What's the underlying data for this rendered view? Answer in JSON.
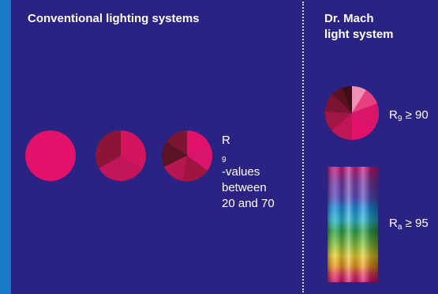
{
  "left_heading": "Conventional lighting systems",
  "right_heading": [
    "Dr. Mach",
    "light system"
  ],
  "left_label": {
    "symbol": "R",
    "sub": "9",
    "lines": [
      "-values",
      "between",
      "20 and 70"
    ]
  },
  "r9_label": {
    "symbol": "R",
    "sub": "9",
    "rest": " ≥ 90"
  },
  "ra_label": {
    "symbol": "R",
    "sub": "a",
    "rest": " ≥ 95"
  },
  "colors": {
    "background": "#2a2384",
    "stripe": "#1979c8",
    "magenta": "#e2116b",
    "divider": "#d8d8ee"
  }
}
